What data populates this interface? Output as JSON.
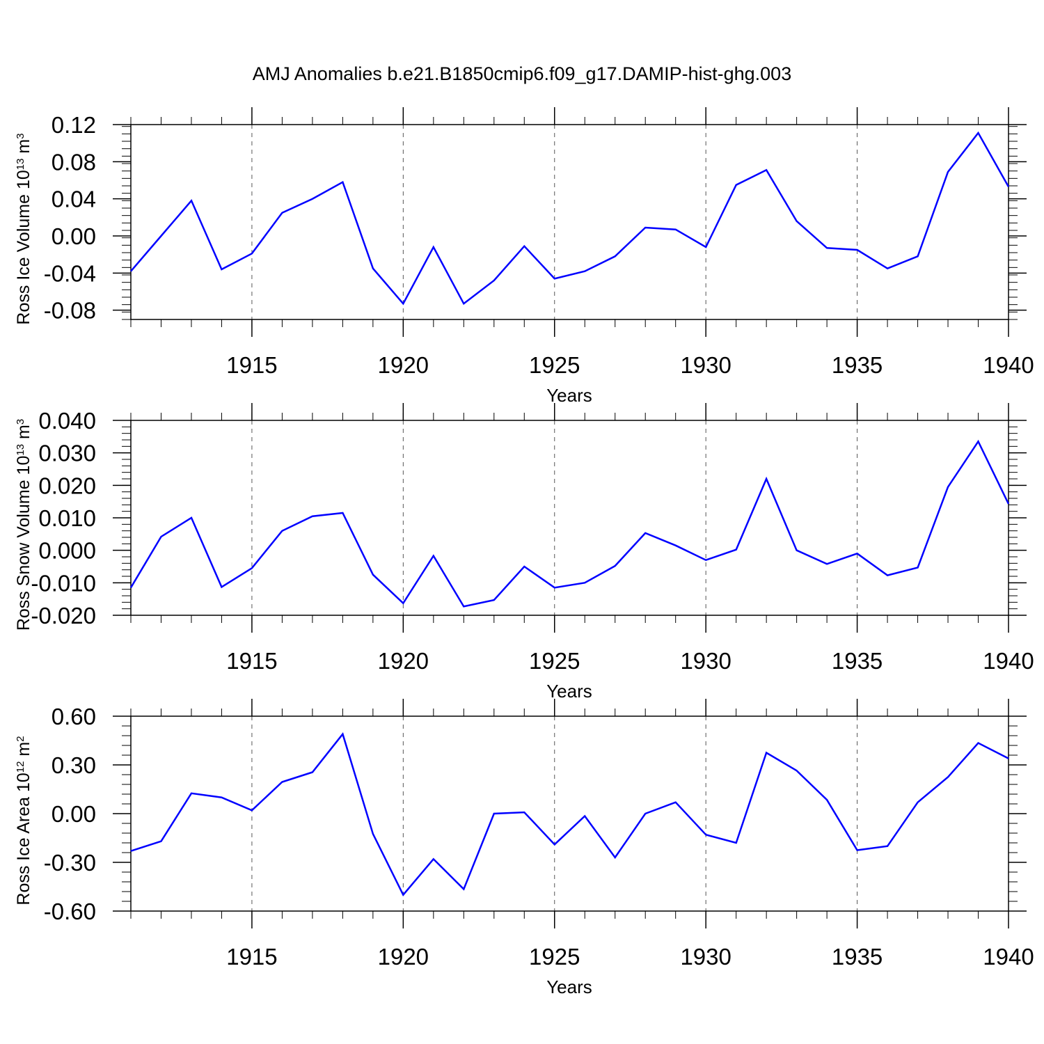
{
  "title": "AMJ Anomalies b.e21.B1850cmip6.f09_g17.DAMIP-hist-ghg.003",
  "colors": {
    "line": "#0000ff",
    "axis": "#000000",
    "grid": "#555555"
  },
  "chart_data": [
    {
      "type": "line",
      "ylabel": {
        "text": "Ross Ice Volume 10",
        "exponent": "13",
        "unit": " m",
        "unit_exponent": "3"
      },
      "xlabel": "Years",
      "xlim": [
        1911,
        1940
      ],
      "ylim": [
        -0.09,
        0.12
      ],
      "yticks": [
        -0.08,
        -0.04,
        0.0,
        0.04,
        0.08,
        0.12
      ],
      "ytick_labels": [
        "-0.08",
        "-0.04",
        "0.00",
        "0.04",
        "0.08",
        "0.12"
      ],
      "ytick_step_minor": 0.008,
      "xticks": [
        1915,
        1920,
        1925,
        1930,
        1935,
        1940
      ],
      "xtick_labels": [
        "1915",
        "1920",
        "1925",
        "1930",
        "1935",
        "1940"
      ],
      "x": [
        1911,
        1912,
        1913,
        1914,
        1915,
        1916,
        1917,
        1918,
        1919,
        1920,
        1921,
        1922,
        1923,
        1924,
        1925,
        1926,
        1927,
        1928,
        1929,
        1930,
        1931,
        1932,
        1933,
        1934,
        1935,
        1936,
        1937,
        1938,
        1939,
        1940
      ],
      "series": [
        {
          "name": "Ross Ice Volume",
          "values": [
            -0.038,
            0.0,
            0.038,
            -0.036,
            -0.019,
            0.025,
            0.04,
            0.058,
            -0.035,
            -0.073,
            -0.012,
            -0.073,
            -0.048,
            -0.011,
            -0.046,
            -0.038,
            -0.022,
            0.009,
            0.007,
            -0.012,
            0.055,
            0.071,
            0.016,
            -0.013,
            -0.015,
            -0.035,
            -0.022,
            0.069,
            0.111,
            0.053
          ]
        }
      ]
    },
    {
      "type": "line",
      "ylabel": {
        "text": "Ross Snow Volume 10",
        "exponent": "13",
        "unit": " m",
        "unit_exponent": "3"
      },
      "xlabel": "Years",
      "xlim": [
        1911,
        1940
      ],
      "ylim": [
        -0.02,
        0.04
      ],
      "yticks": [
        -0.02,
        -0.01,
        0.0,
        0.01,
        0.02,
        0.03,
        0.04
      ],
      "ytick_labels": [
        "-0.020",
        "-0.010",
        "0.000",
        "0.010",
        "0.020",
        "0.030",
        "0.040"
      ],
      "ytick_step_minor": 0.002,
      "xticks": [
        1915,
        1920,
        1925,
        1930,
        1935,
        1940
      ],
      "xtick_labels": [
        "1915",
        "1920",
        "1925",
        "1930",
        "1935",
        "1940"
      ],
      "x": [
        1911,
        1912,
        1913,
        1914,
        1915,
        1916,
        1917,
        1918,
        1919,
        1920,
        1921,
        1922,
        1923,
        1924,
        1925,
        1926,
        1927,
        1928,
        1929,
        1930,
        1931,
        1932,
        1933,
        1934,
        1935,
        1936,
        1937,
        1938,
        1939,
        1940
      ],
      "series": [
        {
          "name": "Ross Snow Volume",
          "values": [
            -0.0115,
            0.0042,
            0.01,
            -0.0113,
            -0.0055,
            0.006,
            0.0105,
            0.0115,
            -0.0075,
            -0.0163,
            -0.0017,
            -0.0173,
            -0.0153,
            -0.005,
            -0.0115,
            -0.01,
            -0.0048,
            0.0053,
            0.0015,
            -0.003,
            0.0002,
            0.022,
            0.0,
            -0.0042,
            -0.001,
            -0.0077,
            -0.0053,
            0.0195,
            0.0335,
            0.0143
          ]
        }
      ]
    },
    {
      "type": "line",
      "ylabel": {
        "text": "Ross Ice Area 10",
        "exponent": "12",
        "unit": " m",
        "unit_exponent": "2"
      },
      "xlabel": "Years",
      "xlim": [
        1911,
        1940
      ],
      "ylim": [
        -0.6,
        0.6
      ],
      "yticks": [
        -0.6,
        -0.3,
        0.0,
        0.3,
        0.6
      ],
      "ytick_labels": [
        "-0.60",
        "-0.30",
        "0.00",
        "0.30",
        "0.60"
      ],
      "ytick_step_minor": 0.06,
      "xticks": [
        1915,
        1920,
        1925,
        1930,
        1935,
        1940
      ],
      "xtick_labels": [
        "1915",
        "1920",
        "1925",
        "1930",
        "1935",
        "1940"
      ],
      "x": [
        1911,
        1912,
        1913,
        1914,
        1915,
        1916,
        1917,
        1918,
        1919,
        1920,
        1921,
        1922,
        1923,
        1924,
        1925,
        1926,
        1927,
        1928,
        1929,
        1930,
        1931,
        1932,
        1933,
        1934,
        1935,
        1936,
        1937,
        1938,
        1939,
        1940
      ],
      "series": [
        {
          "name": "Ross Ice Area",
          "values": [
            -0.23,
            -0.17,
            0.125,
            0.1,
            0.02,
            0.195,
            0.255,
            0.49,
            -0.125,
            -0.5,
            -0.28,
            -0.465,
            0.0,
            0.008,
            -0.19,
            -0.015,
            -0.27,
            0.0,
            0.07,
            -0.13,
            -0.18,
            0.375,
            0.265,
            0.085,
            -0.225,
            -0.2,
            0.07,
            0.225,
            0.435,
            0.34
          ]
        }
      ]
    }
  ]
}
